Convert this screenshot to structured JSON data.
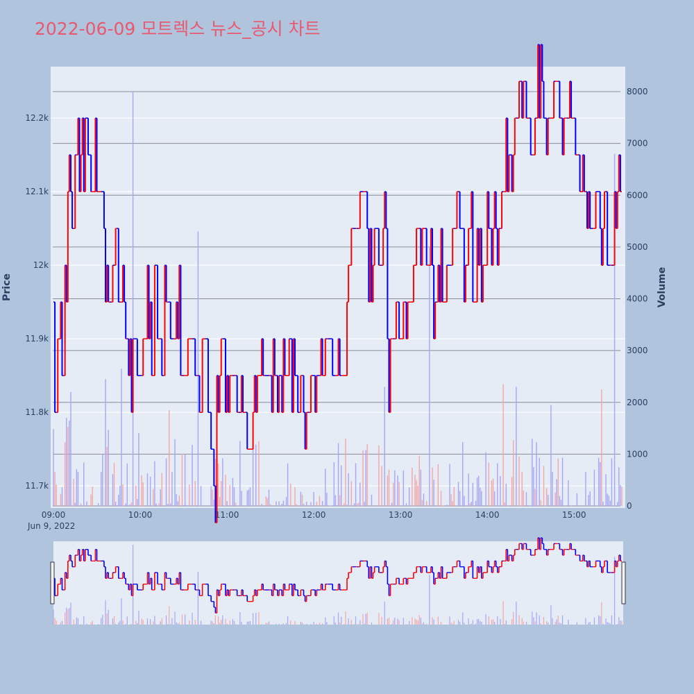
{
  "title": "2022-06-09 모트렉스 뉴스_공시 차트",
  "colors": {
    "background": "#b0c4de",
    "plot_bg": "#e5ecf6",
    "title": "#e8596f",
    "up": "#ff0000",
    "down": "#0000ff",
    "volume_up": "#f4a6a6",
    "volume_down": "#a6a6f4",
    "volume_grid": "#8a8a9a"
  },
  "chart_data": {
    "type": "line",
    "subtype": "stepped price line with volume bars",
    "xlabel": "",
    "ylabel": "Price",
    "y2label": "Volume",
    "date_label": "Jun 9, 2022",
    "x_ticks": [
      "09:00",
      "10:00",
      "11:00",
      "12:00",
      "13:00",
      "14:00",
      "15:00"
    ],
    "x_range_minutes": [
      0,
      393
    ],
    "y_ticks": [
      {
        "value": 11700,
        "label": "11.7k"
      },
      {
        "value": 11800,
        "label": "11.8k"
      },
      {
        "value": 11900,
        "label": "11.9k"
      },
      {
        "value": 12000,
        "label": "12k"
      },
      {
        "value": 12100,
        "label": "12.1k"
      },
      {
        "value": 12200,
        "label": "12.2k"
      }
    ],
    "ylim": [
      11670,
      12270
    ],
    "y2_ticks": [
      0,
      1000,
      2000,
      3000,
      4000,
      5000,
      6000,
      7000,
      8000
    ],
    "y2lim": [
      0,
      8500
    ],
    "price_keyframes": [
      [
        0,
        11950
      ],
      [
        1,
        11800
      ],
      [
        3,
        11900
      ],
      [
        5,
        11950
      ],
      [
        6,
        11850
      ],
      [
        8,
        11950
      ],
      [
        9,
        12000
      ],
      [
        10,
        12100
      ],
      [
        11,
        12200
      ],
      [
        12,
        12150
      ],
      [
        13,
        12050
      ],
      [
        15,
        12150
      ],
      [
        18,
        12100
      ],
      [
        20,
        12150
      ],
      [
        22,
        12200
      ],
      [
        24,
        12150
      ],
      [
        26,
        12100
      ],
      [
        28,
        12150
      ],
      [
        30,
        12100
      ],
      [
        33,
        12100
      ],
      [
        35,
        12050
      ],
      [
        36,
        12000
      ],
      [
        38,
        11950
      ],
      [
        41,
        12000
      ],
      [
        43,
        12050
      ],
      [
        45,
        11950
      ],
      [
        50,
        11900
      ],
      [
        52,
        11850
      ],
      [
        55,
        11900
      ],
      [
        58,
        11850
      ],
      [
        62,
        11900
      ],
      [
        65,
        11950
      ],
      [
        68,
        11850
      ],
      [
        70,
        12000
      ],
      [
        72,
        11900
      ],
      [
        75,
        11850
      ],
      [
        77,
        11950
      ],
      [
        80,
        11900
      ],
      [
        85,
        11950
      ],
      [
        88,
        11850
      ],
      [
        93,
        11900
      ],
      [
        98,
        11850
      ],
      [
        101,
        11800
      ],
      [
        103,
        11900
      ],
      [
        107,
        11800
      ],
      [
        109,
        11750
      ],
      [
        111,
        11700
      ],
      [
        113,
        11850
      ],
      [
        116,
        11900
      ],
      [
        119,
        11800
      ],
      [
        122,
        11850
      ],
      [
        126,
        11800
      ],
      [
        134,
        11750
      ],
      [
        138,
        11800
      ],
      [
        142,
        11850
      ],
      [
        147,
        11850
      ],
      [
        149,
        11800
      ],
      [
        150,
        11850
      ],
      [
        161,
        11850
      ],
      [
        171,
        11850
      ],
      [
        172,
        11800
      ],
      [
        178,
        11850
      ],
      [
        183,
        11850
      ],
      [
        187,
        11900
      ],
      [
        193,
        11850
      ],
      [
        197,
        11850
      ],
      [
        201,
        11850
      ],
      [
        203,
        11950
      ],
      [
        204,
        12000
      ],
      [
        206,
        12050
      ],
      [
        211,
        12050
      ],
      [
        212,
        12100
      ],
      [
        213,
        12050
      ],
      [
        218,
        12000
      ],
      [
        221,
        12050
      ],
      [
        225,
        12000
      ],
      [
        228,
        12050
      ],
      [
        231,
        11950
      ],
      [
        232,
        11850
      ],
      [
        233,
        11900
      ],
      [
        237,
        11950
      ],
      [
        239,
        11900
      ],
      [
        242,
        11950
      ],
      [
        244,
        11950
      ],
      [
        248,
        12000
      ],
      [
        251,
        12050
      ],
      [
        258,
        12000
      ],
      [
        263,
        11950
      ],
      [
        266,
        12000
      ],
      [
        269,
        11950
      ],
      [
        272,
        12000
      ],
      [
        276,
        12050
      ],
      [
        279,
        12100
      ],
      [
        281,
        12050
      ],
      [
        284,
        12000
      ],
      [
        287,
        12050
      ],
      [
        290,
        11950
      ],
      [
        293,
        12000
      ],
      [
        300,
        12050
      ],
      [
        306,
        12050
      ],
      [
        308,
        12050
      ],
      [
        310,
        12100
      ],
      [
        313,
        12150
      ],
      [
        318,
        12150
      ],
      [
        320,
        12200
      ],
      [
        323,
        12250
      ],
      [
        326,
        12200
      ],
      [
        334,
        12250
      ],
      [
        340,
        12200
      ],
      [
        346,
        12250
      ],
      [
        350,
        12200
      ],
      [
        356,
        12250
      ],
      [
        358,
        12200
      ],
      [
        361,
        12150
      ],
      [
        364,
        12100
      ],
      [
        368,
        12100
      ],
      [
        371,
        12050
      ],
      [
        375,
        12100
      ],
      [
        378,
        12050
      ],
      [
        381,
        12100
      ],
      [
        383,
        12000
      ],
      [
        385,
        12050
      ],
      [
        388,
        12100
      ]
    ],
    "volume_spikes": [
      {
        "m": 55,
        "v": 8000,
        "dir": "down"
      },
      {
        "m": 100,
        "v": 5300,
        "dir": "down"
      },
      {
        "m": 260,
        "v": 5000,
        "dir": "down"
      },
      {
        "m": 388,
        "v": 6800,
        "dir": "down"
      },
      {
        "m": 36,
        "v": 2450,
        "dir": "down"
      },
      {
        "m": 47,
        "v": 2650,
        "dir": "down"
      },
      {
        "m": 12,
        "v": 2200,
        "dir": "down"
      },
      {
        "m": 229,
        "v": 2300,
        "dir": "down"
      },
      {
        "m": 311,
        "v": 2350,
        "dir": "up"
      },
      {
        "m": 320,
        "v": 2300,
        "dir": "down"
      },
      {
        "m": 379,
        "v": 2250,
        "dir": "up"
      },
      {
        "m": 344,
        "v": 1950,
        "dir": "down"
      },
      {
        "m": 80,
        "v": 1850,
        "dir": "up"
      },
      {
        "m": 9,
        "v": 1700,
        "dir": "down"
      }
    ]
  }
}
